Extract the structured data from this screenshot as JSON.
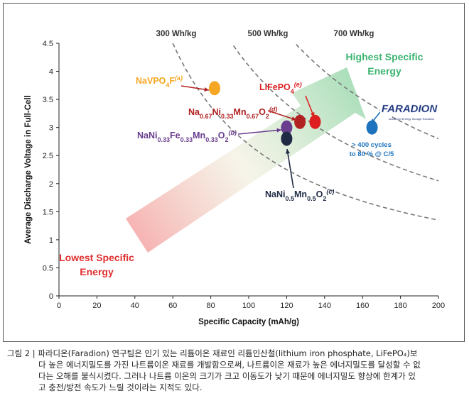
{
  "chart_data": {
    "type": "scatter",
    "xlabel": "Specific Capacity (mAh/g)",
    "ylabel": "Average Discharge Voltage in Full-Cell",
    "xlim": [
      0,
      200
    ],
    "ylim": [
      0,
      4.5
    ],
    "x_ticks": [
      "0",
      "20",
      "40",
      "60",
      "80",
      "100",
      "120",
      "140",
      "160",
      "180",
      "200"
    ],
    "y_ticks": [
      "0",
      "0.5",
      "1",
      "1.5",
      "2",
      "2.5",
      "3",
      "3.5",
      "4",
      "4.5"
    ],
    "grid": false,
    "points": [
      {
        "label": "NaVPO",
        "sub": "4",
        "sup": "F",
        "ref": "(a)",
        "x": 82,
        "y": 3.7,
        "color": "#f5a623"
      },
      {
        "label": "Na0.67Ni0.33Mn0.67O2",
        "ref": "(d)",
        "x": 127,
        "y": 3.1,
        "color": "#b22222"
      },
      {
        "label": "LiFePO",
        "sub": "4",
        "ref": "(e)",
        "x": 135,
        "y": 3.1,
        "color": "#dd1f1f"
      },
      {
        "label": "NaNi0.33Fe0.33Mn0.33O2",
        "ref": "(b)",
        "x": 120,
        "y": 3.0,
        "color": "#6a3d8f"
      },
      {
        "label": "NaNi0.5Mn0.5O2",
        "ref": "(c)",
        "x": 120,
        "y": 2.8,
        "color": "#1f2a44"
      },
      {
        "label": "Faradion",
        "x": 165,
        "y": 3.0,
        "color": "#1e73be"
      }
    ],
    "energy_curves": [
      {
        "label": "300 Wh/kg",
        "wh": 300
      },
      {
        "label": "500 Wh/kg",
        "wh": 500
      },
      {
        "label": "700 Wh/kg",
        "wh": 700
      }
    ],
    "annotations": {
      "highest": [
        "Highest Specific",
        "Energy"
      ],
      "lowest": [
        "Lowest Specific",
        "Energy"
      ],
      "faradion_note": [
        "> 400 cycles",
        "to 80 % @ C/5"
      ],
      "faradion_logo": "FARADION",
      "faradion_tagline": "Advanced Energy Storage Solutions"
    },
    "colors": {
      "highest": "#3cb371",
      "lowest": "#e03030",
      "faradion_note": "#1e73be",
      "axis": "#222222",
      "curve": "#777777"
    }
  },
  "caption": {
    "lines": [
      "그림 2 | 파라디온(Faradion) 연구팀은 인기 있는 리튬이온 재료인 리튬인산철(lithium iron phosphate, LiFePO₄)보",
      "다 높은 에너지밀도를 가진 나트륨이온 재료를 개발함으로써, 나트륨이온 재료가 높은 에너지밀도를 달성할 수 없",
      "다는 오해를 불식시켰다. 그러나 나트륨 이온의 크기가 크고 이동도가 낮기 때문에 에너지밀도 향상에 한계가 있",
      "고 충전/방전 속도가 느릴 것이라는 지적도 있다."
    ]
  }
}
